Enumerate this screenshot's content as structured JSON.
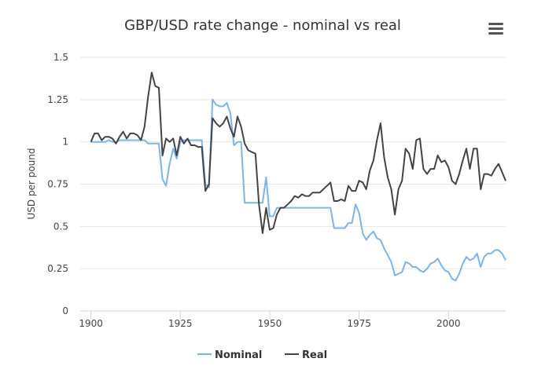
{
  "chart_data": {
    "type": "line",
    "title": "GBP/USD rate change - nominal vs real",
    "ylabel": "USD per pound",
    "xlabel": "",
    "xlim": [
      1897,
      2016
    ],
    "ylim": [
      0,
      1.5
    ],
    "x_ticks": [
      "1900",
      "1925",
      "1950",
      "1975",
      "2000"
    ],
    "y_ticks": [
      "0",
      "0.25",
      "0.5",
      "0.75",
      "1",
      "1.25",
      "1.5"
    ],
    "grid": true,
    "legend_position": "bottom-center",
    "series": [
      {
        "name": "Nominal",
        "color": "#7cb5ec",
        "points": [
          [
            1900,
            1
          ],
          [
            1901,
            1
          ],
          [
            1902,
            1
          ],
          [
            1903,
            1
          ],
          [
            1904,
            1
          ],
          [
            1905,
            1.01
          ],
          [
            1906,
            1
          ],
          [
            1907,
            1
          ],
          [
            1908,
            1.01
          ],
          [
            1909,
            1.01
          ],
          [
            1910,
            1.01
          ],
          [
            1911,
            1.01
          ],
          [
            1912,
            1.01
          ],
          [
            1913,
            1.01
          ],
          [
            1914,
            1.01
          ],
          [
            1915,
            1.01
          ],
          [
            1916,
            0.99
          ],
          [
            1917,
            0.99
          ],
          [
            1918,
            0.99
          ],
          [
            1919,
            0.99
          ],
          [
            1920,
            0.78
          ],
          [
            1921,
            0.74
          ],
          [
            1922,
            0.87
          ],
          [
            1923,
            0.96
          ],
          [
            1924,
            0.9
          ],
          [
            1925,
            1
          ],
          [
            1926,
            1.01
          ],
          [
            1927,
            1.01
          ],
          [
            1928,
            1.01
          ],
          [
            1929,
            1.01
          ],
          [
            1930,
            1.01
          ],
          [
            1931,
            1.01
          ],
          [
            1932,
            0.75
          ],
          [
            1933,
            0.73
          ],
          [
            1934,
            1.25
          ],
          [
            1935,
            1.22
          ],
          [
            1936,
            1.21
          ],
          [
            1937,
            1.21
          ],
          [
            1938,
            1.23
          ],
          [
            1939,
            1.17
          ],
          [
            1940,
            0.98
          ],
          [
            1941,
            1
          ],
          [
            1942,
            1
          ],
          [
            1943,
            0.64
          ],
          [
            1944,
            0.64
          ],
          [
            1945,
            0.64
          ],
          [
            1946,
            0.64
          ],
          [
            1947,
            0.64
          ],
          [
            1948,
            0.64
          ],
          [
            1949,
            0.79
          ],
          [
            1950,
            0.56
          ],
          [
            1951,
            0.56
          ],
          [
            1952,
            0.61
          ],
          [
            1953,
            0.61
          ],
          [
            1954,
            0.61
          ],
          [
            1955,
            0.61
          ],
          [
            1956,
            0.61
          ],
          [
            1957,
            0.61
          ],
          [
            1958,
            0.61
          ],
          [
            1959,
            0.61
          ],
          [
            1960,
            0.61
          ],
          [
            1961,
            0.61
          ],
          [
            1962,
            0.61
          ],
          [
            1963,
            0.61
          ],
          [
            1964,
            0.61
          ],
          [
            1965,
            0.61
          ],
          [
            1966,
            0.61
          ],
          [
            1967,
            0.61
          ],
          [
            1968,
            0.49
          ],
          [
            1969,
            0.49
          ],
          [
            1970,
            0.49
          ],
          [
            1971,
            0.49
          ],
          [
            1972,
            0.52
          ],
          [
            1973,
            0.52
          ],
          [
            1974,
            0.63
          ],
          [
            1975,
            0.58
          ],
          [
            1976,
            0.46
          ],
          [
            1977,
            0.42
          ],
          [
            1978,
            0.45
          ],
          [
            1979,
            0.47
          ],
          [
            1980,
            0.43
          ],
          [
            1981,
            0.42
          ],
          [
            1982,
            0.37
          ],
          [
            1983,
            0.33
          ],
          [
            1984,
            0.29
          ],
          [
            1985,
            0.21
          ],
          [
            1986,
            0.22
          ],
          [
            1987,
            0.23
          ],
          [
            1988,
            0.29
          ],
          [
            1989,
            0.28
          ],
          [
            1990,
            0.26
          ],
          [
            1991,
            0.26
          ],
          [
            1992,
            0.24
          ],
          [
            1993,
            0.23
          ],
          [
            1994,
            0.25
          ],
          [
            1995,
            0.28
          ],
          [
            1996,
            0.29
          ],
          [
            1997,
            0.31
          ],
          [
            1998,
            0.27
          ],
          [
            1999,
            0.24
          ],
          [
            2000,
            0.23
          ],
          [
            2001,
            0.19
          ],
          [
            2002,
            0.18
          ],
          [
            2003,
            0.22
          ],
          [
            2004,
            0.28
          ],
          [
            2005,
            0.32
          ],
          [
            2006,
            0.3
          ],
          [
            2007,
            0.31
          ],
          [
            2008,
            0.34
          ],
          [
            2009,
            0.26
          ],
          [
            2010,
            0.32
          ],
          [
            2011,
            0.34
          ],
          [
            2012,
            0.34
          ],
          [
            2013,
            0.36
          ],
          [
            2014,
            0.36
          ],
          [
            2015,
            0.34
          ],
          [
            2016,
            0.3
          ]
        ]
      },
      {
        "name": "Real",
        "color": "#434348",
        "points": [
          [
            1900,
            1
          ],
          [
            1901,
            1.05
          ],
          [
            1902,
            1.05
          ],
          [
            1903,
            1.01
          ],
          [
            1904,
            1.03
          ],
          [
            1905,
            1.03
          ],
          [
            1906,
            1.02
          ],
          [
            1907,
            0.99
          ],
          [
            1908,
            1.03
          ],
          [
            1909,
            1.06
          ],
          [
            1910,
            1.02
          ],
          [
            1911,
            1.05
          ],
          [
            1912,
            1.05
          ],
          [
            1913,
            1.04
          ],
          [
            1914,
            1.01
          ],
          [
            1915,
            1.09
          ],
          [
            1916,
            1.27
          ],
          [
            1917,
            1.41
          ],
          [
            1918,
            1.33
          ],
          [
            1919,
            1.32
          ],
          [
            1920,
            0.92
          ],
          [
            1921,
            1.02
          ],
          [
            1922,
            1
          ],
          [
            1923,
            1.02
          ],
          [
            1924,
            0.92
          ],
          [
            1925,
            1.03
          ],
          [
            1926,
            0.99
          ],
          [
            1927,
            1.02
          ],
          [
            1928,
            0.98
          ],
          [
            1929,
            0.98
          ],
          [
            1930,
            0.97
          ],
          [
            1931,
            0.97
          ],
          [
            1932,
            0.71
          ],
          [
            1933,
            0.75
          ],
          [
            1934,
            1.14
          ],
          [
            1935,
            1.11
          ],
          [
            1936,
            1.09
          ],
          [
            1937,
            1.11
          ],
          [
            1938,
            1.15
          ],
          [
            1939,
            1.08
          ],
          [
            1940,
            1.03
          ],
          [
            1941,
            1.15
          ],
          [
            1942,
            1.09
          ],
          [
            1943,
            0.99
          ],
          [
            1944,
            0.95
          ],
          [
            1945,
            0.94
          ],
          [
            1946,
            0.93
          ],
          [
            1947,
            0.63
          ],
          [
            1948,
            0.46
          ],
          [
            1949,
            0.61
          ],
          [
            1950,
            0.48
          ],
          [
            1951,
            0.49
          ],
          [
            1952,
            0.57
          ],
          [
            1953,
            0.61
          ],
          [
            1954,
            0.61
          ],
          [
            1955,
            0.63
          ],
          [
            1956,
            0.65
          ],
          [
            1957,
            0.68
          ],
          [
            1958,
            0.67
          ],
          [
            1959,
            0.69
          ],
          [
            1960,
            0.68
          ],
          [
            1961,
            0.68
          ],
          [
            1962,
            0.7
          ],
          [
            1963,
            0.7
          ],
          [
            1964,
            0.7
          ],
          [
            1965,
            0.72
          ],
          [
            1966,
            0.74
          ],
          [
            1967,
            0.76
          ],
          [
            1968,
            0.65
          ],
          [
            1969,
            0.65
          ],
          [
            1970,
            0.66
          ],
          [
            1971,
            0.65
          ],
          [
            1972,
            0.74
          ],
          [
            1973,
            0.71
          ],
          [
            1974,
            0.71
          ],
          [
            1975,
            0.77
          ],
          [
            1976,
            0.76
          ],
          [
            1977,
            0.72
          ],
          [
            1978,
            0.83
          ],
          [
            1979,
            0.89
          ],
          [
            1980,
            1.01
          ],
          [
            1981,
            1.11
          ],
          [
            1982,
            0.91
          ],
          [
            1983,
            0.79
          ],
          [
            1984,
            0.72
          ],
          [
            1985,
            0.57
          ],
          [
            1986,
            0.72
          ],
          [
            1987,
            0.77
          ],
          [
            1988,
            0.96
          ],
          [
            1989,
            0.93
          ],
          [
            1990,
            0.84
          ],
          [
            1991,
            1.01
          ],
          [
            1992,
            1.02
          ],
          [
            1993,
            0.84
          ],
          [
            1994,
            0.81
          ],
          [
            1995,
            0.84
          ],
          [
            1996,
            0.84
          ],
          [
            1997,
            0.92
          ],
          [
            1998,
            0.88
          ],
          [
            1999,
            0.89
          ],
          [
            2000,
            0.85
          ],
          [
            2001,
            0.77
          ],
          [
            2002,
            0.75
          ],
          [
            2003,
            0.81
          ],
          [
            2004,
            0.89
          ],
          [
            2005,
            0.96
          ],
          [
            2006,
            0.84
          ],
          [
            2007,
            0.96
          ],
          [
            2008,
            0.96
          ],
          [
            2009,
            0.72
          ],
          [
            2010,
            0.81
          ],
          [
            2011,
            0.81
          ],
          [
            2012,
            0.8
          ],
          [
            2013,
            0.84
          ],
          [
            2014,
            0.87
          ],
          [
            2015,
            0.82
          ],
          [
            2016,
            0.77
          ]
        ]
      }
    ]
  },
  "menu_icon": "hamburger-menu-icon"
}
